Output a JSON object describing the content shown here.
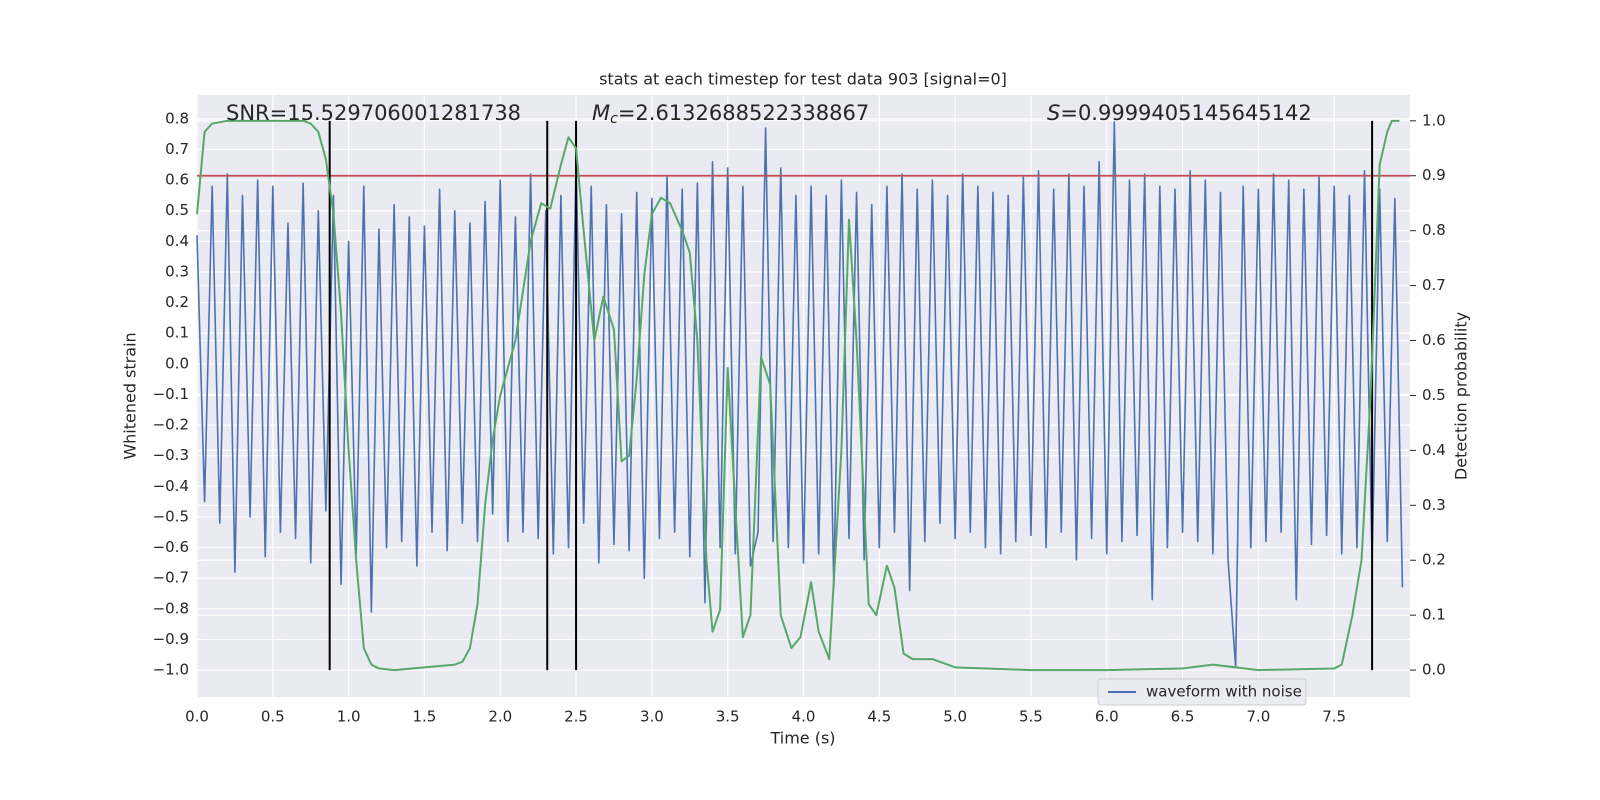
{
  "chart_data": {
    "type": "line",
    "title": "stats at each timestep for test data 903 [signal=0]",
    "xlabel": "Time (s)",
    "ylabel": "Whitened strain",
    "y2label": "Detection probability",
    "annotations": [
      {
        "text": "SNR=15.529706001281738"
      },
      {
        "symbol": "M",
        "subscript": "c",
        "text": "=2.6132688522338867"
      },
      {
        "symbol": "S",
        "text": "=0.9999405145645142"
      }
    ],
    "xlim": [
      0,
      8.0
    ],
    "ylim": [
      -1.088,
      0.878
    ],
    "y2lim": [
      -0.049,
      1.047
    ],
    "xticks": [
      {
        "value": 0,
        "label": "0.0"
      },
      0.5,
      {
        "value": 1,
        "label": "1.0"
      },
      1.5,
      {
        "value": 2,
        "label": "2.0"
      },
      2.5,
      {
        "value": 3,
        "label": "3.0"
      },
      3.5,
      {
        "value": 4,
        "label": "4.0"
      },
      4.5,
      {
        "value": 5,
        "label": "5.0"
      },
      5.5,
      {
        "value": 6,
        "label": "6.0"
      },
      6.5,
      {
        "value": 7,
        "label": "7.0"
      },
      7.5
    ],
    "yticks": [
      {
        "value": -1,
        "label": "−1.0"
      },
      {
        "value": -0.9,
        "label": "−0.9"
      },
      {
        "value": -0.8,
        "label": "−0.8"
      },
      {
        "value": -0.7,
        "label": "−0.7"
      },
      {
        "value": -0.6,
        "label": "−0.6"
      },
      {
        "value": -0.5,
        "label": "−0.5"
      },
      {
        "value": -0.4,
        "label": "−0.4"
      },
      {
        "value": -0.3,
        "label": "−0.3"
      },
      {
        "value": -0.2,
        "label": "−0.2"
      },
      {
        "value": -0.1,
        "label": "−0.1"
      },
      {
        "value": 0,
        "label": "0.0"
      },
      0.1,
      0.2,
      0.3,
      0.4,
      0.5,
      0.6,
      0.7,
      0.8
    ],
    "y2ticks": [
      {
        "value": 0,
        "label": "0.0"
      },
      0.1,
      0.2,
      0.3,
      0.4,
      0.5,
      0.6,
      0.7,
      0.8,
      0.9,
      {
        "value": 1,
        "label": "1.0"
      }
    ],
    "grid": true,
    "legend": "lower right",
    "series": [
      {
        "name": "waveform with noise",
        "color": "#4c72b0",
        "x": [
          0,
          0.05,
          0.1,
          0.15,
          0.2,
          0.25,
          0.3,
          0.35,
          0.4,
          0.45,
          0.5,
          0.55,
          0.6,
          0.65,
          0.7,
          0.75,
          0.8,
          0.85,
          0.9,
          0.95,
          1,
          1.05,
          1.1,
          1.15,
          1.2,
          1.25,
          1.3,
          1.35,
          1.4,
          1.45,
          1.5,
          1.55,
          1.6,
          1.65,
          1.7,
          1.75,
          1.8,
          1.85,
          1.9,
          1.95,
          2,
          2.05,
          2.1,
          2.15,
          2.2,
          2.25,
          2.3,
          2.35,
          2.4,
          2.45,
          2.5,
          2.55,
          2.6,
          2.65,
          2.7,
          2.75,
          2.8,
          2.85,
          2.9,
          2.95,
          3,
          3.05,
          3.1,
          3.15,
          3.2,
          3.25,
          3.3,
          3.35,
          3.4,
          3.45,
          3.5,
          3.55,
          3.6,
          3.65,
          3.7,
          3.75,
          3.8,
          3.85,
          3.9,
          3.95,
          4,
          4.05,
          4.1,
          4.15,
          4.2,
          4.25,
          4.3,
          4.35,
          4.4,
          4.45,
          4.5,
          4.55,
          4.6,
          4.65,
          4.7,
          4.75,
          4.8,
          4.85,
          4.9,
          4.95,
          5,
          5.05,
          5.1,
          5.15,
          5.2,
          5.25,
          5.3,
          5.35,
          5.4,
          5.45,
          5.5,
          5.55,
          5.6,
          5.65,
          5.7,
          5.75,
          5.8,
          5.85,
          5.9,
          5.95,
          6,
          6.05,
          6.1,
          6.15,
          6.2,
          6.25,
          6.3,
          6.35,
          6.4,
          6.45,
          6.5,
          6.55,
          6.6,
          6.65,
          6.7,
          6.75,
          6.8,
          6.85,
          6.9,
          6.95,
          7,
          7.05,
          7.1,
          7.15,
          7.2,
          7.25,
          7.3,
          7.35,
          7.4,
          7.45,
          7.5,
          7.55,
          7.6,
          7.65,
          7.7,
          7.75,
          7.8,
          7.85,
          7.9,
          7.95
        ],
        "values": [
          0.42,
          -0.45,
          0.58,
          -0.52,
          0.62,
          -0.68,
          0.55,
          -0.5,
          0.6,
          -0.63,
          0.58,
          -0.55,
          0.46,
          -0.57,
          0.59,
          -0.65,
          0.5,
          -0.48,
          0.55,
          -0.72,
          0.4,
          -0.62,
          0.58,
          -0.81,
          0.44,
          -0.6,
          0.52,
          -0.58,
          0.48,
          -0.66,
          0.45,
          -0.55,
          0.57,
          -0.61,
          0.5,
          -0.52,
          0.46,
          -0.58,
          0.53,
          -0.49,
          0.6,
          -0.58,
          0.48,
          -0.55,
          0.62,
          -0.57,
          0.5,
          -0.62,
          0.55,
          -0.6,
          0.66,
          -0.52,
          0.58,
          -0.65,
          0.52,
          -0.59,
          0.49,
          -0.61,
          0.56,
          -0.7,
          0.54,
          -0.57,
          0.61,
          -0.55,
          0.57,
          -0.63,
          0.59,
          -0.78,
          0.66,
          -0.6,
          0.64,
          -0.62,
          0.58,
          -0.66,
          -0.55,
          0.77,
          -0.58,
          0.64,
          -0.6,
          0.55,
          -0.65,
          0.58,
          -0.62,
          0.55,
          -0.73,
          0.6,
          -0.57,
          0.56,
          -0.64,
          0.52,
          -0.6,
          0.58,
          -0.55,
          0.62,
          -0.74,
          0.57,
          -0.58,
          0.6,
          -0.52,
          0.55,
          -0.57,
          0.62,
          -0.55,
          0.58,
          -0.6,
          0.56,
          -0.62,
          0.55,
          -0.58,
          0.61,
          -0.56,
          0.63,
          -0.6,
          0.57,
          -0.55,
          0.62,
          -0.64,
          0.58,
          -0.57,
          0.66,
          -0.62,
          0.79,
          -0.58,
          0.6,
          -0.56,
          0.62,
          -0.77,
          0.58,
          -0.6,
          0.57,
          -0.55,
          0.63,
          -0.58,
          0.6,
          -0.62,
          0.56,
          -0.64,
          -0.99,
          0.58,
          -0.6,
          0.57,
          -0.58,
          0.62,
          -0.55,
          0.6,
          -0.77,
          0.57,
          -0.59,
          0.61,
          -0.56,
          0.58,
          -0.62,
          0.55,
          -0.6,
          0.63,
          -0.65,
          0.57,
          -0.58,
          0.54,
          -0.73
        ]
      },
      {
        "color": "#55a868",
        "axis": "y2",
        "x": [
          0,
          0.05,
          0.1,
          0.2,
          0.3,
          0.4,
          0.5,
          0.6,
          0.7,
          0.75,
          0.8,
          0.85,
          0.9,
          0.95,
          1,
          1.05,
          1.1,
          1.15,
          1.2,
          1.3,
          1.5,
          1.7,
          1.75,
          1.8,
          1.85,
          1.9,
          1.95,
          2,
          2.1,
          2.2,
          2.27,
          2.33,
          2.4,
          2.45,
          2.5,
          2.55,
          2.62,
          2.68,
          2.75,
          2.8,
          2.85,
          2.9,
          2.95,
          3,
          3.06,
          3.12,
          3.2,
          3.25,
          3.3,
          3.36,
          3.4,
          3.45,
          3.5,
          3.55,
          3.6,
          3.65,
          3.72,
          3.78,
          3.85,
          3.92,
          3.98,
          4.05,
          4.1,
          4.17,
          4.25,
          4.3,
          4.35,
          4.4,
          4.43,
          4.48,
          4.55,
          4.6,
          4.66,
          4.72,
          4.85,
          5,
          5.5,
          6,
          6.5,
          6.7,
          7,
          7.5,
          7.55,
          7.62,
          7.68,
          7.74,
          7.8,
          7.85,
          7.88,
          7.93
        ],
        "values": [
          0.83,
          0.98,
          0.995,
          1,
          1,
          1,
          1,
          1,
          1,
          0.995,
          0.98,
          0.93,
          0.83,
          0.65,
          0.4,
          0.2,
          0.04,
          0.01,
          0.003,
          0,
          0.005,
          0.01,
          0.015,
          0.04,
          0.12,
          0.3,
          0.42,
          0.5,
          0.6,
          0.78,
          0.85,
          0.84,
          0.92,
          0.97,
          0.95,
          0.8,
          0.6,
          0.68,
          0.62,
          0.38,
          0.39,
          0.53,
          0.72,
          0.83,
          0.86,
          0.85,
          0.8,
          0.76,
          0.6,
          0.2,
          0.07,
          0.11,
          0.55,
          0.3,
          0.06,
          0.1,
          0.57,
          0.52,
          0.1,
          0.04,
          0.06,
          0.16,
          0.07,
          0.02,
          0.4,
          0.82,
          0.6,
          0.3,
          0.12,
          0.1,
          0.19,
          0.15,
          0.03,
          0.02,
          0.02,
          0.005,
          0,
          0,
          0.003,
          0.01,
          0,
          0.003,
          0.01,
          0.1,
          0.2,
          0.5,
          0.92,
          0.98,
          1,
          1
        ]
      }
    ],
    "hlines": [
      {
        "value": 0.9,
        "axis": "y2",
        "color": "#c44e52"
      }
    ],
    "vlines": {
      "x": [
        0.875,
        2.31,
        2.5,
        7.75
      ],
      "span": [
        0,
        1
      ],
      "axis": "y2",
      "color": "#000000"
    }
  }
}
